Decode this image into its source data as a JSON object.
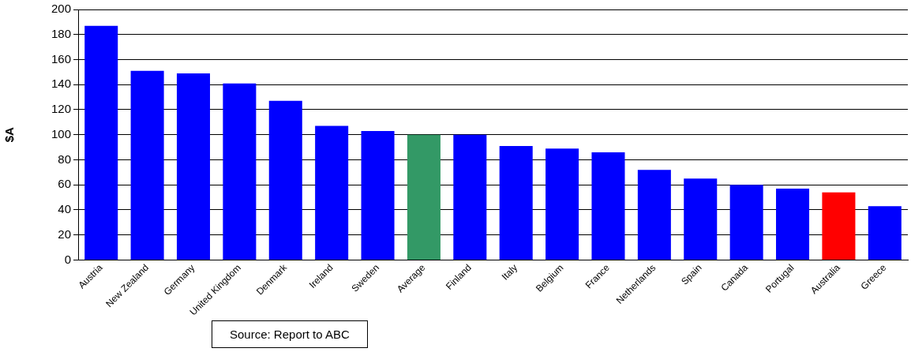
{
  "chart_data": {
    "type": "bar",
    "ylabel": "$A",
    "categories": [
      "Austria",
      "New Zealand",
      "Germany",
      "United Kingdom",
      "Denmark",
      "Ireland",
      "Sweden",
      "Average",
      "Finland",
      "Italy",
      "Belgium",
      "France",
      "Netherlands",
      "Spain",
      "Canada",
      "Portugal",
      "Australia",
      "Greece"
    ],
    "values": [
      187,
      151,
      149,
      141,
      127,
      107,
      103,
      100,
      100,
      91,
      89,
      86,
      72,
      65,
      60,
      57,
      54,
      43
    ],
    "colors": [
      "#0000ff",
      "#0000ff",
      "#0000ff",
      "#0000ff",
      "#0000ff",
      "#0000ff",
      "#0000ff",
      "#339966",
      "#0000ff",
      "#0000ff",
      "#0000ff",
      "#0000ff",
      "#0000ff",
      "#0000ff",
      "#0000ff",
      "#0000ff",
      "#ff0000",
      "#0000ff"
    ],
    "ylim": [
      0,
      200
    ],
    "yticks": [
      0,
      20,
      40,
      60,
      80,
      100,
      120,
      140,
      160,
      180,
      200
    ],
    "grid": "y",
    "annotations": [
      "Source: Report to ABC"
    ]
  }
}
